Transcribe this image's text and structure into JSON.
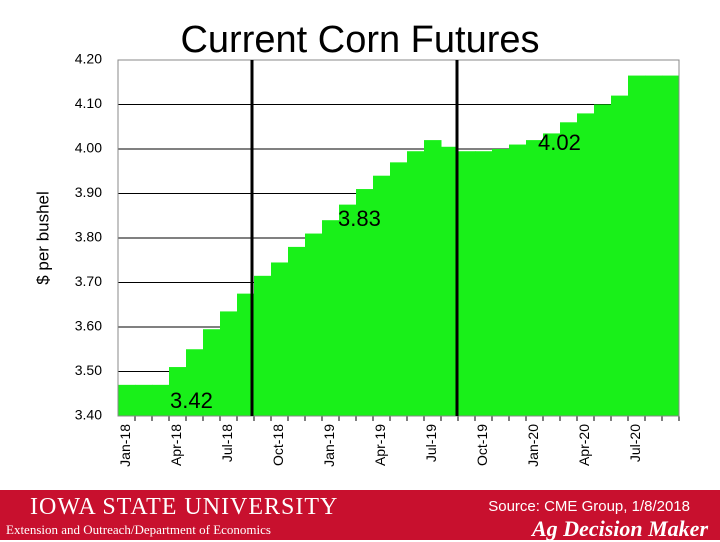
{
  "chart_data": {
    "type": "bar",
    "title": "Current Corn Futures",
    "y_label": "$ per bushel",
    "categories": [
      "Jan-18",
      null,
      null,
      "Apr-18",
      null,
      null,
      "Jul-18",
      null,
      null,
      "Oct-18",
      null,
      null,
      "Jan-19",
      null,
      null,
      "Apr-19",
      null,
      null,
      "Jul-19",
      null,
      null,
      "Oct-19",
      null,
      null,
      "Jan-20",
      null,
      null,
      "Apr-20",
      null,
      null,
      "Jul-20",
      null,
      null
    ],
    "values": [
      3.47,
      3.47,
      3.47,
      3.51,
      3.55,
      3.595,
      3.635,
      3.675,
      3.715,
      3.745,
      3.78,
      3.81,
      3.84,
      3.875,
      3.91,
      3.94,
      3.97,
      3.995,
      4.02,
      4.005,
      3.995,
      3.995,
      4.0,
      4.01,
      4.02,
      4.035,
      4.06,
      4.08,
      4.1,
      4.12,
      4.165,
      4.165,
      4.165
    ],
    "color": "#19f019",
    "ylim": [
      3.4,
      4.2
    ],
    "yticks": [
      {
        "value": 3.4,
        "label": "3.40"
      },
      {
        "value": 3.5,
        "label": "3.50"
      },
      {
        "value": 3.6,
        "label": "3.60"
      },
      {
        "value": 3.7,
        "label": "3.70"
      },
      {
        "value": 3.8,
        "label": "3.80"
      },
      {
        "value": 3.9,
        "label": "3.90"
      },
      {
        "value": 4.0,
        "label": "4.00"
      },
      {
        "value": 4.1,
        "label": "4.10"
      },
      {
        "value": 4.2,
        "label": "4.20"
      }
    ],
    "grid": true,
    "annotations": [
      "3.42",
      "3.83",
      "4.02"
    ],
    "source": "Source: CME Group, 1/8/2018"
  },
  "footer": {
    "university": "IOWA STATE UNIVERSITY",
    "department": "Extension and Outreach/Department of Economics",
    "brand": "Ag Decision Maker"
  }
}
